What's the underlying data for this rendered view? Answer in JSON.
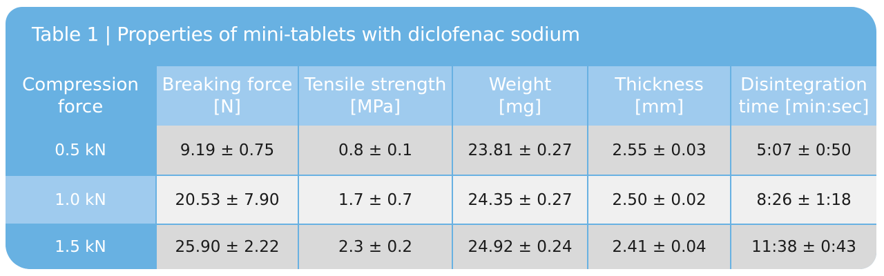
{
  "caption": "Table 1 | Properties of mini-tablets with diclofenac sodium",
  "columns": [
    {
      "line1": "Compression",
      "line2": "force"
    },
    {
      "line1": "Breaking force",
      "line2": "[N]"
    },
    {
      "line1": "Tensile strength",
      "line2": "[MPa]"
    },
    {
      "line1": "Weight",
      "line2": "[mg]"
    },
    {
      "line1": "Thickness",
      "line2": "[mm]"
    },
    {
      "line1": "Disintegration",
      "line2": "time [min:sec]"
    }
  ],
  "rows": [
    {
      "label": "0.5 kN",
      "cells": [
        "9.19 ± 0.75",
        "0.8 ± 0.1",
        "23.81 ± 0.27",
        "2.55 ± 0.03",
        "5:07 ± 0:50"
      ]
    },
    {
      "label": "1.0 kN",
      "cells": [
        "20.53 ± 7.90",
        "1.7 ± 0.7",
        "24.35 ± 0.27",
        "2.50 ± 0.02",
        "8:26 ± 1:18"
      ]
    },
    {
      "label": "1.5 kN",
      "cells": [
        "25.90 ± 2.22",
        "2.3 ± 0.2",
        "24.92 ± 0.24",
        "2.41 ± 0.04",
        "11:38 ± 0:43"
      ]
    }
  ],
  "colors": {
    "header_blue": "#68b1e2",
    "light_blue": "#9fcbee",
    "row_gray": "#d9d9d9",
    "row_light": "#f0f0f0"
  }
}
